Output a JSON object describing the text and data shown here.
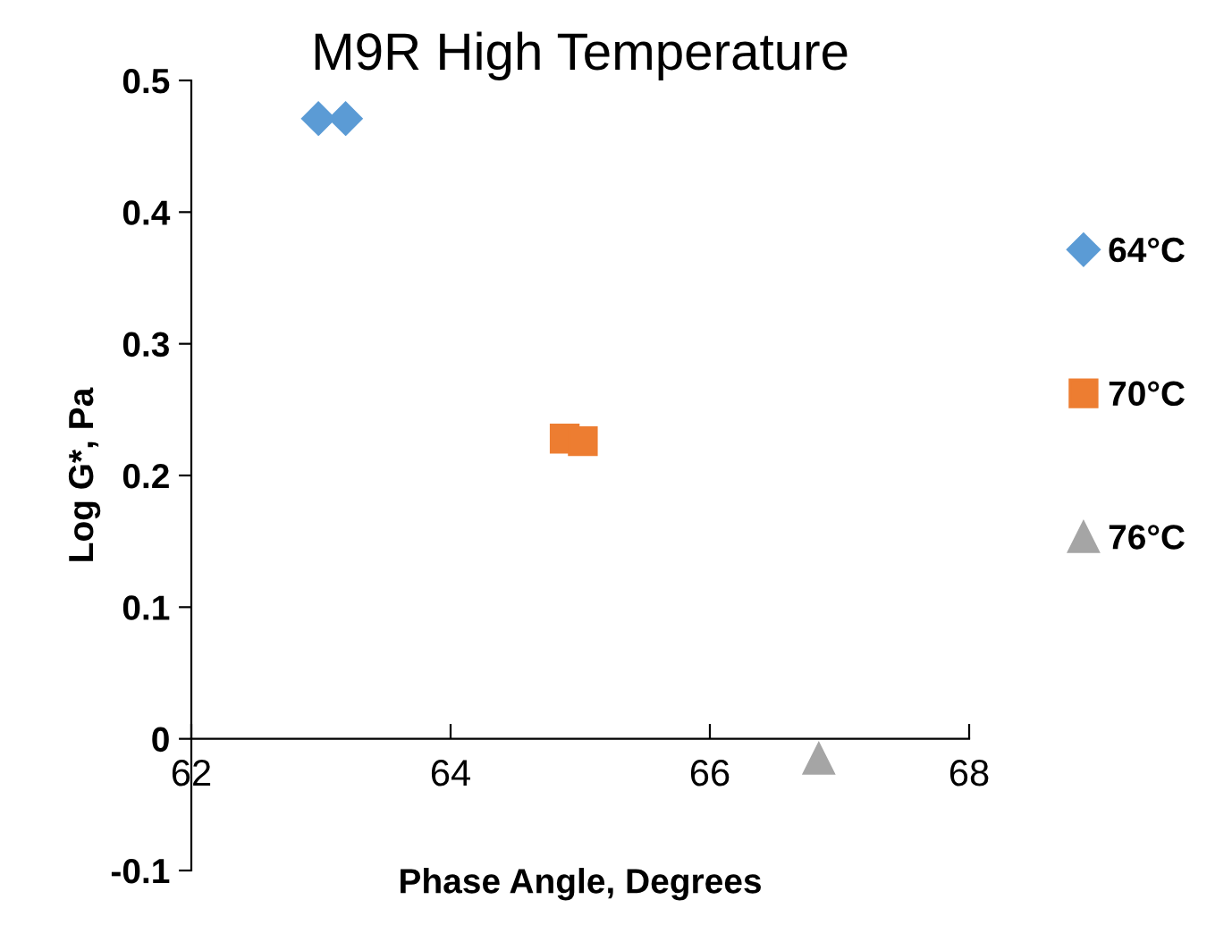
{
  "chart_data": {
    "type": "scatter",
    "title": "M9R High Temperature",
    "xlabel": "Phase Angle, Degrees",
    "ylabel": "Log G*, Pa",
    "xlim": [
      62,
      68
    ],
    "xticks": [
      62,
      64,
      66,
      68
    ],
    "ylim": [
      -0.1,
      0.5
    ],
    "yticks": [
      -0.1,
      0,
      0.1,
      0.2,
      0.3,
      0.4,
      0.5
    ],
    "grid": false,
    "legend": "right",
    "series": [
      {
        "name": "64°C",
        "color": "#5b9bd5",
        "marker": "diamond",
        "x": [
          62.98,
          63.19
        ],
        "values": [
          0.471,
          0.471
        ]
      },
      {
        "name": "70°C",
        "color": "#ed7d31",
        "marker": "square",
        "x": [
          64.88,
          65.02
        ],
        "values": [
          0.228,
          0.226
        ]
      },
      {
        "name": "76°C",
        "color": "#a5a5a5",
        "marker": "triangle",
        "x": [
          66.84
        ],
        "values": [
          -0.015
        ]
      }
    ]
  }
}
